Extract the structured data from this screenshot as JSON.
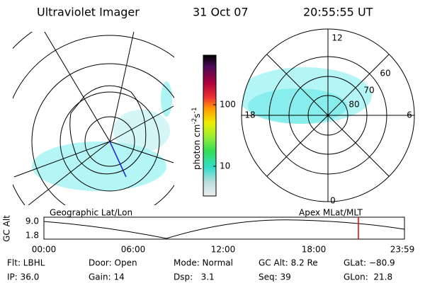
{
  "header": {
    "title": "Ultraviolet Imager",
    "date": "31 Oct 07",
    "time": "20:55:55 UT"
  },
  "colorbar": {
    "label": [
      "photon cm",
      "-2",
      "s",
      "-1"
    ],
    "ticks": [
      "100",
      "10"
    ]
  },
  "polar": {
    "labels": [
      "12",
      "60",
      "70",
      "80",
      "18",
      "6",
      "0"
    ]
  },
  "timeline": {
    "left_label": "Geographic Lat/Lon",
    "right_label": "Apex MLat/MLT",
    "axis_title": "GC Alt",
    "yticks": [
      "9.0",
      "1.8"
    ],
    "xticks": [
      "00:00",
      "06:00",
      "12:00",
      "18:00",
      "23:59"
    ]
  },
  "footer": {
    "rows": [
      [
        "Flt: LBHL",
        "Door: Open",
        "Mode: Normal",
        "GC Alt: 8.2 Re",
        "GLat: −80.9"
      ],
      [
        "IP: 36.0",
        "Gain: 14",
        "Dsp:   3.1",
        "Seq: 39",
        "GLon:  21.8"
      ]
    ]
  }
}
